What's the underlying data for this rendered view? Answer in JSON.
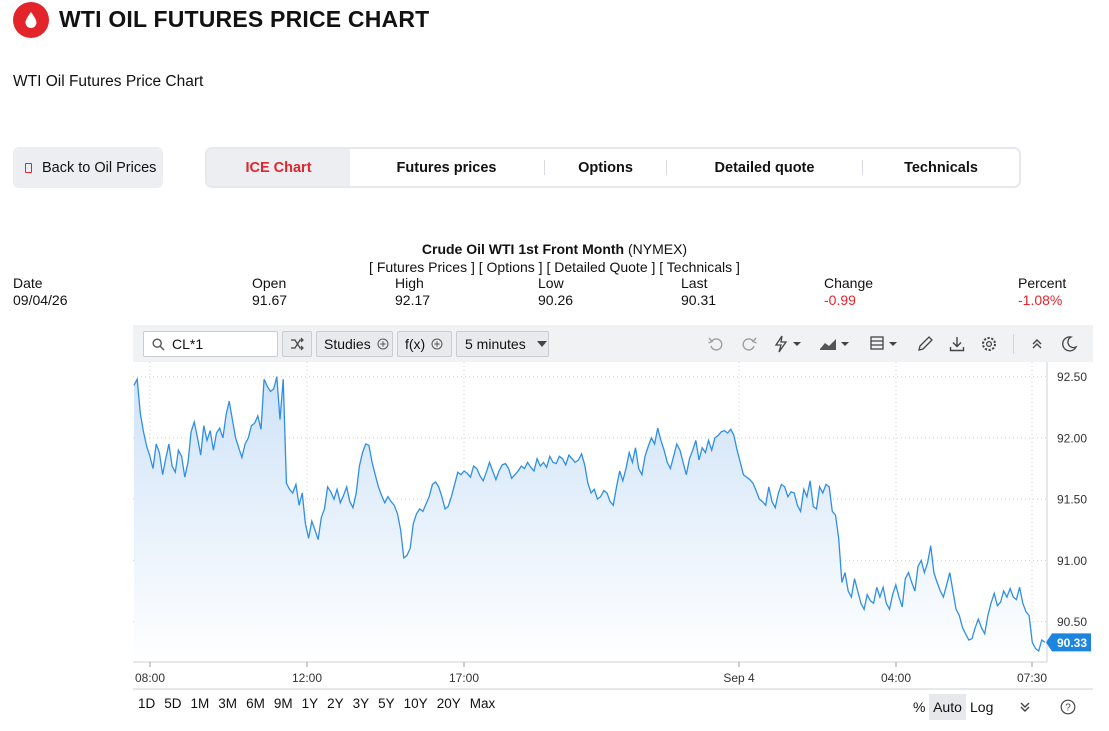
{
  "header": {
    "title": "WTI OIL FUTURES PRICE CHART",
    "subtitle": "WTI Oil Futures Price Chart"
  },
  "nav": {
    "back_label": "Back to Oil Prices",
    "tabs": [
      "ICE Chart",
      "Futures prices",
      "Options",
      "Detailed quote",
      "Technicals"
    ],
    "active_tab": "ICE Chart"
  },
  "quote": {
    "name": "Crude Oil WTI 1st Front Month",
    "exchange": "(NYMEX)",
    "links": "[ Futures Prices ] [ Options ] [ Detailed Quote ] [ Technicals ]",
    "labels": {
      "date": "Date",
      "open": "Open",
      "high": "High",
      "low": "Low",
      "last": "Last",
      "change": "Change",
      "percent": "Percent"
    },
    "values": {
      "date": "09/04/26",
      "open": "91.67",
      "high": "92.17",
      "low": "90.26",
      "last": "90.31",
      "change": "-0.99",
      "percent": "-1.08%"
    }
  },
  "toolbar": {
    "symbol": "CL*1",
    "studies": "Studies",
    "fx": "f(x)",
    "interval": "5 minutes",
    "icons": [
      "search-icon",
      "compare-icon",
      "plus-circle-icon",
      "caret-down-icon",
      "undo-icon",
      "redo-icon",
      "lightning-icon",
      "chart-type-icon",
      "layout-icon",
      "pencil-icon",
      "download-icon",
      "gear-icon",
      "collapse-icon",
      "moon-icon"
    ]
  },
  "range_bar": {
    "ranges": [
      "1D",
      "5D",
      "1M",
      "3M",
      "6M",
      "9M",
      "1Y",
      "2Y",
      "3Y",
      "5Y",
      "10Y",
      "20Y",
      "Max"
    ],
    "percent": "%",
    "auto": "Auto",
    "log": "Log"
  },
  "colors": {
    "line": "#2f8fe6",
    "fill_top": "#cfe3f8",
    "accent": "#e3242b",
    "badge": "#1c85e0"
  },
  "chart_data": {
    "type": "area",
    "ylim": [
      90.17,
      92.62
    ],
    "y_ticks": [
      92.5,
      92.0,
      91.5,
      91.0,
      90.5
    ],
    "x_tick_labels": [
      "08:00",
      "12:00",
      "17:00",
      "Sep 4",
      "04:00",
      "07:30"
    ],
    "last_value": "90.33",
    "grid": true,
    "series": [
      {
        "values": [
          92.43,
          92.48,
          92.2,
          92.05,
          91.93,
          91.85,
          91.75,
          91.95,
          91.88,
          91.7,
          91.83,
          91.95,
          91.77,
          91.72,
          91.9,
          91.85,
          91.68,
          91.8,
          92.05,
          92.13,
          92.0,
          91.86,
          92.1,
          91.98,
          92.06,
          91.9,
          92.04,
          92.08,
          92.0,
          92.19,
          92.3,
          92.15,
          92.0,
          91.92,
          91.84,
          91.95,
          92.0,
          92.1,
          92.12,
          92.18,
          92.07,
          92.48,
          92.42,
          92.38,
          92.4,
          92.5,
          92.15,
          92.48,
          91.63,
          91.58,
          91.55,
          91.62,
          91.45,
          91.55,
          91.3,
          91.18,
          91.32,
          91.25,
          91.17,
          91.35,
          91.42,
          91.6,
          91.56,
          91.5,
          91.58,
          91.47,
          91.53,
          91.6,
          91.48,
          91.43,
          91.55,
          91.77,
          91.88,
          91.95,
          91.94,
          91.8,
          91.7,
          91.6,
          91.53,
          91.47,
          91.52,
          91.48,
          91.45,
          91.38,
          91.25,
          91.02,
          91.04,
          91.1,
          91.3,
          91.38,
          91.42,
          91.4,
          91.46,
          91.52,
          91.62,
          91.64,
          91.6,
          91.52,
          91.42,
          91.44,
          91.52,
          91.62,
          91.72,
          91.7,
          91.73,
          91.71,
          91.68,
          91.77,
          91.75,
          91.69,
          91.65,
          91.72,
          91.8,
          91.73,
          91.66,
          91.73,
          91.78,
          91.79,
          91.75,
          91.67,
          91.7,
          91.73,
          91.77,
          91.75,
          91.8,
          91.76,
          91.73,
          91.83,
          91.77,
          91.8,
          91.76,
          91.85,
          91.8,
          91.79,
          91.85,
          91.83,
          91.78,
          91.86,
          91.83,
          91.8,
          91.82,
          91.87,
          91.78,
          91.63,
          91.55,
          91.58,
          91.5,
          91.52,
          91.57,
          91.55,
          91.48,
          91.45,
          91.6,
          91.73,
          91.65,
          91.75,
          91.88,
          91.8,
          91.92,
          91.75,
          91.7,
          91.85,
          91.93,
          92.0,
          91.95,
          92.08,
          91.98,
          91.9,
          91.8,
          91.75,
          91.85,
          91.95,
          91.9,
          91.8,
          91.7,
          91.83,
          91.9,
          91.98,
          91.82,
          91.92,
          91.88,
          91.98,
          91.9,
          92.0,
          92.02,
          92.05,
          92.06,
          92.04,
          92.07,
          92.02,
          91.9,
          91.8,
          91.7,
          91.68,
          91.66,
          91.63,
          91.57,
          91.5,
          91.48,
          91.45,
          91.6,
          91.48,
          91.43,
          91.55,
          91.62,
          91.6,
          91.52,
          91.56,
          91.55,
          91.45,
          91.4,
          91.58,
          91.52,
          91.65,
          91.44,
          91.42,
          91.6,
          91.55,
          91.62,
          91.6,
          91.4,
          91.37,
          91.18,
          90.82,
          90.9,
          90.75,
          90.7,
          90.85,
          90.75,
          90.65,
          90.6,
          90.72,
          90.67,
          90.65,
          90.78,
          90.7,
          90.78,
          90.65,
          90.6,
          90.72,
          90.8,
          90.7,
          90.62,
          90.85,
          90.9,
          90.82,
          90.75,
          90.95,
          91.0,
          90.9,
          90.98,
          91.12,
          90.9,
          90.82,
          90.75,
          90.7,
          90.8,
          90.9,
          90.75,
          90.6,
          90.55,
          90.45,
          90.4,
          90.35,
          90.36,
          90.45,
          90.52,
          90.45,
          90.4,
          90.55,
          90.65,
          90.73,
          90.63,
          90.66,
          90.75,
          90.7,
          90.77,
          90.7,
          90.68,
          90.78,
          90.65,
          90.58,
          90.55,
          90.33,
          90.28,
          90.26,
          90.35,
          90.33
        ]
      }
    ]
  }
}
